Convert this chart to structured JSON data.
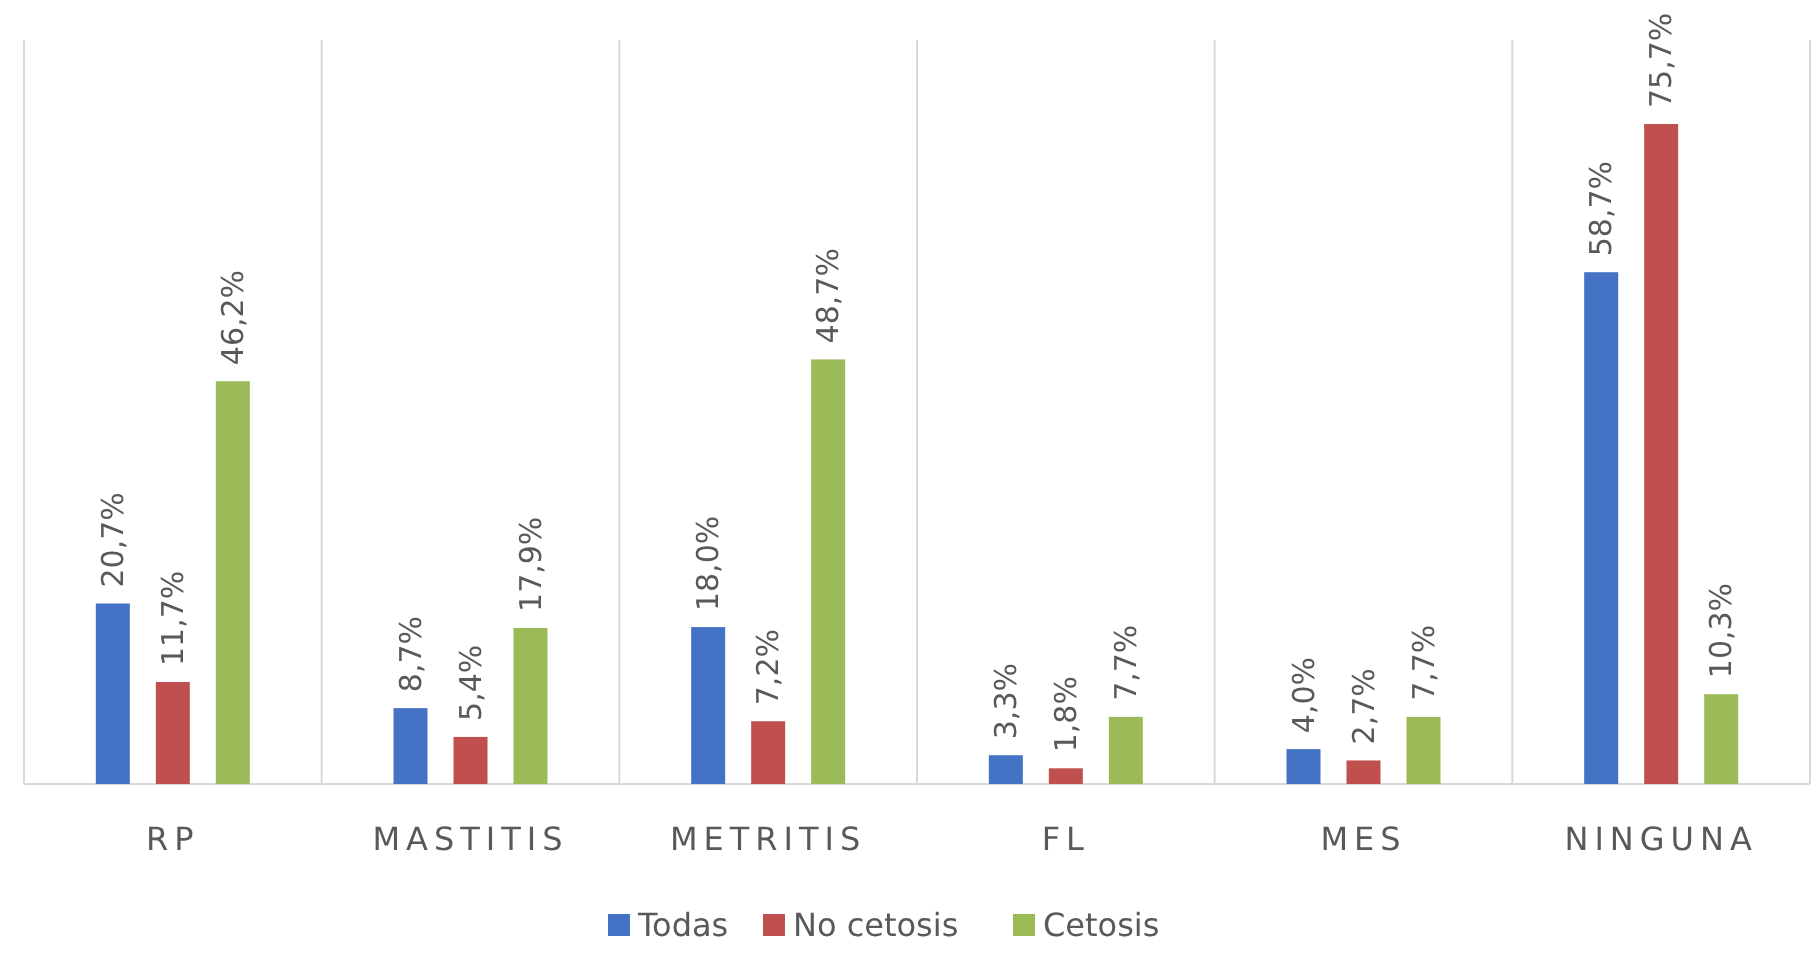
{
  "chart_data": {
    "type": "bar",
    "categories": [
      "RP",
      "MASTITIS",
      "METRITIS",
      "FL",
      "MES",
      "NINGUNA"
    ],
    "series": [
      {
        "name": "Todas",
        "color": "#4472c4",
        "values": [
          20.7,
          8.7,
          18.0,
          3.3,
          4.0,
          58.7
        ],
        "value_labels": [
          "20,7%",
          "8,7%",
          "18,0%",
          "3,3%",
          "4,0%",
          "58,7%"
        ]
      },
      {
        "name": "No cetosis",
        "color": "#c0504d",
        "values": [
          11.7,
          5.4,
          7.2,
          1.8,
          2.7,
          75.7
        ],
        "value_labels": [
          "11,7%",
          "5,4%",
          "7,2%",
          "1,8%",
          "2,7%",
          "75,7%"
        ]
      },
      {
        "name": "Cetosis",
        "color": "#9bbb59",
        "values": [
          46.2,
          17.9,
          48.7,
          7.7,
          7.7,
          10.3
        ],
        "value_labels": [
          "46,2%",
          "17,9%",
          "48,7%",
          "7,7%",
          "7,7%",
          "10,3%"
        ]
      }
    ],
    "grid": "x",
    "legend": "bottom"
  }
}
